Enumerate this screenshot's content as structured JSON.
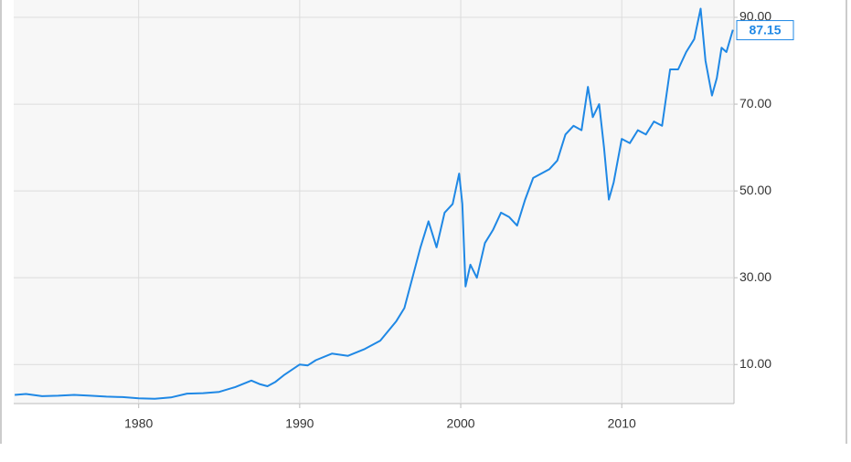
{
  "chart_data": {
    "type": "line",
    "x": [
      1972.3,
      1973,
      1974,
      1975,
      1976,
      1977,
      1978,
      1979,
      1980,
      1981,
      1982,
      1983,
      1984,
      1985,
      1986,
      1987,
      1987.5,
      1988,
      1988.5,
      1989,
      1990,
      1990.5,
      1991,
      1992,
      1993,
      1994,
      1995,
      1996,
      1996.5,
      1997,
      1997.5,
      1998,
      1998.5,
      1999,
      1999.5,
      1999.9,
      2000.1,
      2000.3,
      2000.6,
      2001,
      2001.5,
      2002,
      2002.5,
      2003,
      2003.5,
      2004,
      2004.5,
      2005,
      2005.5,
      2006,
      2006.5,
      2007,
      2007.5,
      2007.9,
      2008.2,
      2008.6,
      2008.9,
      2009.2,
      2009.5,
      2010,
      2010.5,
      2011,
      2011.5,
      2012,
      2012.5,
      2013,
      2013.5,
      2014,
      2014.5,
      2014.9,
      2015.2,
      2015.6,
      2015.9,
      2016.2,
      2016.5,
      2016.9
    ],
    "series": [
      {
        "color": "#1f88e5",
        "values": [
          3.0,
          3.2,
          2.7,
          2.8,
          3.0,
          2.8,
          2.6,
          2.5,
          2.2,
          2.1,
          2.4,
          3.3,
          3.4,
          3.7,
          4.8,
          6.3,
          5.5,
          5.0,
          6.0,
          7.5,
          10.0,
          9.8,
          11.0,
          12.5,
          12.0,
          13.5,
          15.5,
          20.0,
          23,
          30,
          37,
          43,
          37,
          45,
          47,
          54,
          47,
          28,
          33,
          30,
          38,
          41,
          45,
          44,
          42,
          48,
          53,
          54,
          55,
          57,
          63,
          65,
          64,
          74,
          67,
          70,
          60,
          48,
          52,
          62,
          61,
          64,
          63,
          66,
          65,
          78,
          78,
          82,
          85,
          92,
          80,
          72,
          76,
          83,
          82,
          87.15
        ]
      }
    ],
    "xlim": [
      1972.24,
      2016.97
    ],
    "ylim": [
      1,
      94
    ],
    "xticks": [
      1980,
      1990,
      2000,
      2010
    ],
    "yticks": [
      {
        "value": 10,
        "label": "10.00"
      },
      {
        "value": 30,
        "label": "30.00"
      },
      {
        "value": 50,
        "label": "50.00"
      },
      {
        "value": 70,
        "label": "70.00"
      },
      {
        "value": 90,
        "label": "90.00"
      }
    ],
    "grid": true
  }
}
